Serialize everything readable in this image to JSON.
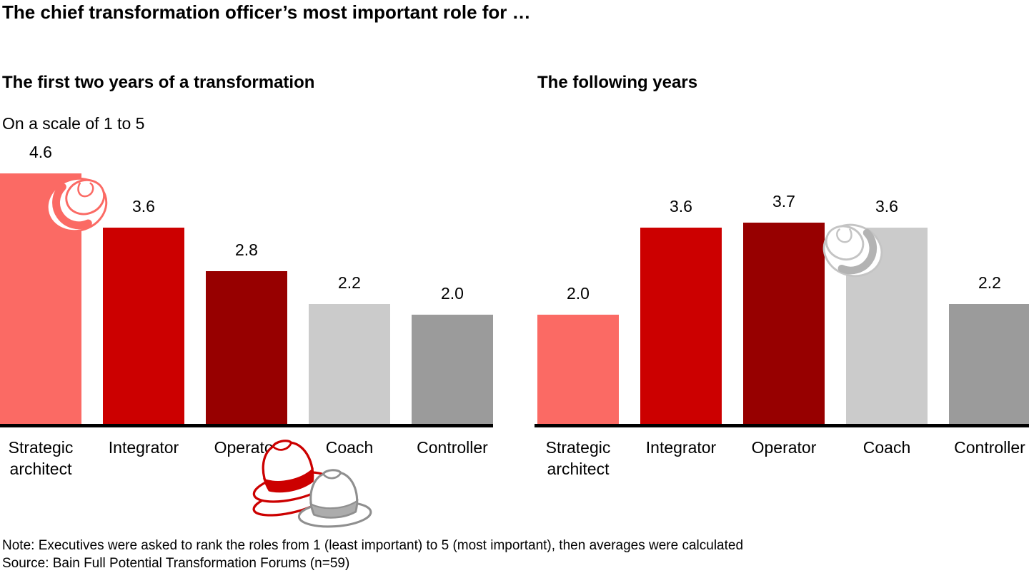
{
  "title": "The chief transformation officer’s most important role for …",
  "note": "Note: Executives were asked to rank the roles from 1 (least important) to 5 (most important), then averages were calculated",
  "source": "Source: Bain Full Potential Transformation Forums (n=59)",
  "colors": {
    "salmon": "#FB6A64",
    "red": "#CC0000",
    "dark_red": "#970000",
    "light_gray": "#CBCBCB",
    "gray": "#9B9B9B",
    "axis": "#000000",
    "text": "#000000"
  },
  "chart_data": [
    {
      "type": "bar",
      "title": "The first two years of a transformation",
      "subtitle": "On a scale of 1 to 5",
      "categories": [
        "Strategic architect",
        "Integrator",
        "Operator",
        "Coach",
        "Controller"
      ],
      "values": [
        4.6,
        3.6,
        2.8,
        2.2,
        2.0
      ],
      "value_labels": [
        "4.6",
        "3.6",
        "2.8",
        "2.2",
        "2.0"
      ],
      "bar_colors": [
        "salmon",
        "red",
        "dark_red",
        "light_gray",
        "gray"
      ],
      "xlabel": "",
      "ylabel": "",
      "ylim": [
        0,
        5
      ],
      "grid": false,
      "legend": false,
      "value_labels_position": "above bars"
    },
    {
      "type": "bar",
      "title": "The following years",
      "subtitle": "",
      "categories": [
        "Strategic architect",
        "Integrator",
        "Operator",
        "Coach",
        "Controller"
      ],
      "values": [
        2.0,
        3.6,
        3.7,
        3.6,
        2.2
      ],
      "value_labels": [
        "2.0",
        "3.6",
        "3.7",
        "3.6",
        "2.2"
      ],
      "bar_colors": [
        "salmon",
        "red",
        "dark_red",
        "light_gray",
        "gray"
      ],
      "xlabel": "",
      "ylabel": "",
      "ylim": [
        0,
        5
      ],
      "grid": false,
      "legend": false,
      "value_labels_position": "above bars"
    }
  ],
  "decorations": {
    "hats": [
      {
        "icon": "fedora-hat-icon",
        "view": "top",
        "color": "salmon",
        "position": "top-right corner of Strategic architect bar, first chart"
      },
      {
        "icon": "fedora-hat-icon",
        "view": "side",
        "color": "red",
        "position": "below axis between Operator and Coach labels, first chart"
      },
      {
        "icon": "fedora-hat-icon",
        "view": "side",
        "color": "gray",
        "position": "below axis, in front of red hat, first chart"
      },
      {
        "icon": "fedora-hat-icon",
        "view": "top",
        "color": "gray",
        "position": "top-left corner of Coach bar, second chart"
      }
    ]
  }
}
